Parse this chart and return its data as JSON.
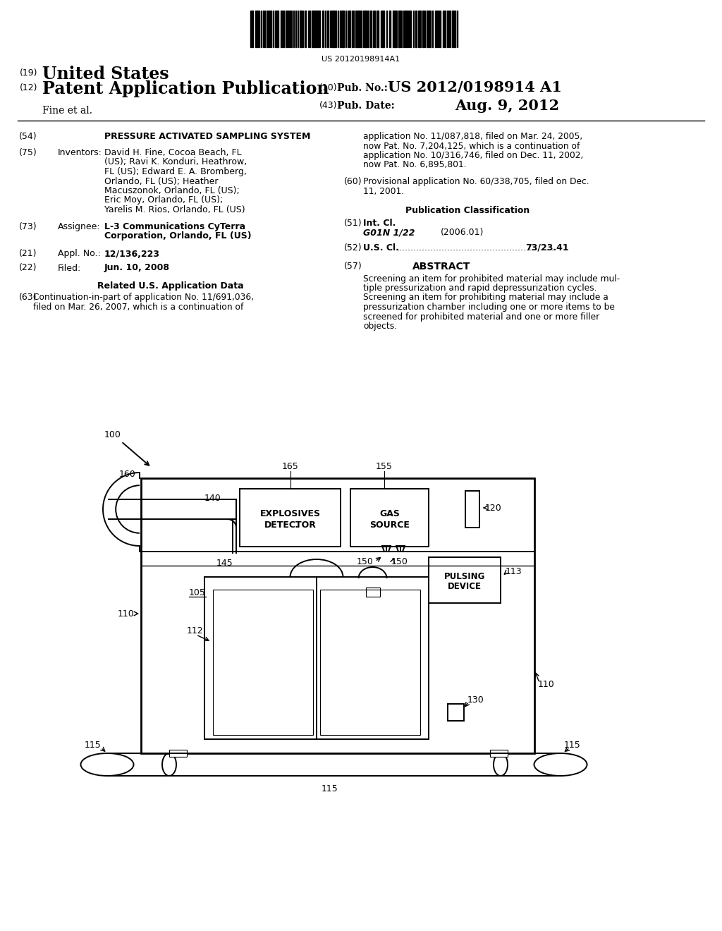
{
  "bg_color": "#ffffff",
  "barcode_text": "US 20120198914A1",
  "header_line1_num": "(19)",
  "header_line1_text": "United States",
  "header_line2_num": "(12)",
  "header_line2_text": "Patent Application Publication",
  "header_right1_num": "(10)",
  "header_right1_label": "Pub. No.:",
  "header_right1_val": "US 2012/0198914 A1",
  "header_right2_num": "(43)",
  "header_right2_label": "Pub. Date:",
  "header_right2_val": "Aug. 9, 2012",
  "header_inventor": "Fine et al.",
  "section54_num": "(54)",
  "section54_label": "PRESSURE ACTIVATED SAMPLING SYSTEM",
  "section75_num": "(75)",
  "section75_label": "Inventors:",
  "section75_lines": [
    "David H. Fine, Cocoa Beach, FL",
    "(US); Ravi K. Konduri, Heathrow,",
    "FL (US); Edward E. A. Bromberg,",
    "Orlando, FL (US); Heather",
    "Macuszonok, Orlando, FL (US);",
    "Eric Moy, Orlando, FL (US);",
    "Yarelis M. Rios, Orlando, FL (US)"
  ],
  "section73_num": "(73)",
  "section73_label": "Assignee:",
  "section73_lines": [
    "L-3 Communications CyTerra",
    "Corporation, Orlando, FL (US)"
  ],
  "section21_num": "(21)",
  "section21_label": "Appl. No.:",
  "section21_val": "12/136,223",
  "section22_num": "(22)",
  "section22_label": "Filed:",
  "section22_val": "Jun. 10, 2008",
  "related_header": "Related U.S. Application Data",
  "section63_num": "(63)",
  "section63_lines": [
    "Continuation-in-part of application No. 11/691,036,",
    "filed on Mar. 26, 2007, which is a continuation of"
  ],
  "rc_cont_lines": [
    "application No. 11/087,818, filed on Mar. 24, 2005,",
    "now Pat. No. 7,204,125, which is a continuation of",
    "application No. 10/316,746, filed on Dec. 11, 2002,",
    "now Pat. No. 6,895,801."
  ],
  "section60_num": "(60)",
  "section60_lines": [
    "Provisional application No. 60/338,705, filed on Dec.",
    "11, 2001."
  ],
  "pub_class_header": "Publication Classification",
  "section51_num": "(51)",
  "section51_label": "Int. Cl.",
  "section51_val1": "G01N 1/22",
  "section51_val2": "(2006.01)",
  "section52_num": "(52)",
  "section52_label": "U.S. Cl.",
  "section52_dots": "........................................................",
  "section52_val": "73/23.41",
  "section57_num": "(57)",
  "section57_header": "ABSTRACT",
  "section57_lines": [
    "Screening an item for prohibited material may include mul-",
    "tiple pressurization and rapid depressurization cycles.",
    "Screening an item for prohibiting material may include a",
    "pressurization chamber including one or more items to be",
    "screened for prohibited material and one or more filler",
    "objects."
  ]
}
